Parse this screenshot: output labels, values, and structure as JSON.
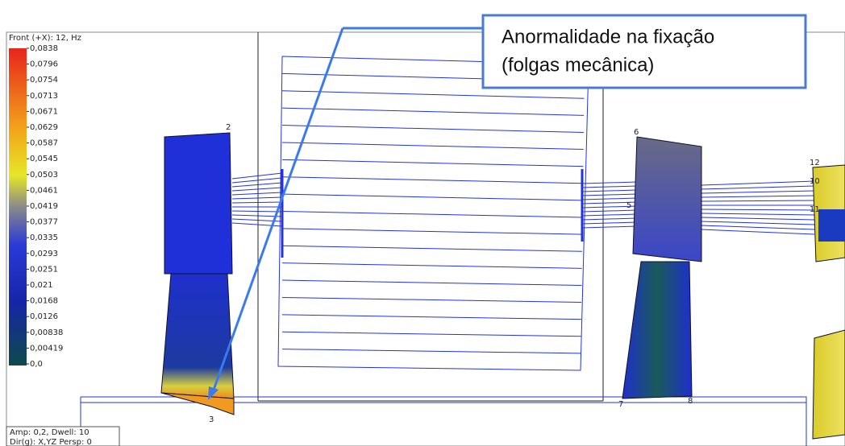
{
  "legend": {
    "title": "Front (+X): 12, Hz",
    "labels": [
      "0,0838",
      "0,0796",
      "0,0754",
      "0,0713",
      "0,0671",
      "0,0629",
      "0,0587",
      "0,0545",
      "0,0503",
      "0,0461",
      "0,0419",
      "0,0377",
      "0,0335",
      "0,0293",
      "0,0251",
      "0,021",
      "0,0168",
      "0,0126",
      "0,00838",
      "0,00419",
      "0,0"
    ]
  },
  "callout": {
    "line1": "Anormalidade na fixação",
    "line2": "(folgas mecânica)"
  },
  "node_labels": [
    "2",
    "3",
    "6",
    "5",
    "7",
    "8",
    "12",
    "10",
    "11"
  ],
  "status": {
    "line1": "Amp: 0,2, Dwell: 10",
    "line2": "Dir(g): X,YZ Persp: 0"
  }
}
